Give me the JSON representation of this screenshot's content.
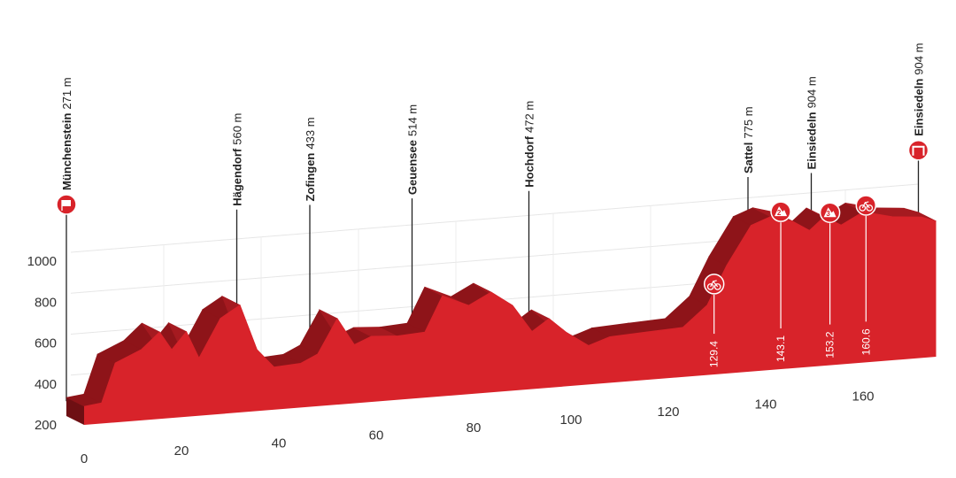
{
  "chart_data": {
    "type": "area",
    "color": "#d8232a",
    "side_color": "#8e1419",
    "x": [
      0,
      3.6,
      6.4,
      11.8,
      15.5,
      18,
      21,
      23.6,
      28,
      32,
      35.5,
      39,
      44.5,
      48,
      52,
      55.5,
      59,
      64.5,
      70,
      73.6,
      79,
      83.6,
      88,
      92,
      95.5,
      99,
      103.6,
      108,
      115.5,
      123,
      128,
      132,
      137,
      141,
      145.5,
      149,
      152,
      155.5,
      160,
      166,
      172,
      175
    ],
    "values": [
      290,
      300,
      490,
      546,
      624,
      533,
      615,
      481,
      667,
      724,
      500,
      408,
      416,
      455,
      620,
      486,
      520,
      512,
      520,
      690,
      633,
      689,
      616,
      481,
      537,
      464,
      390,
      425,
      434,
      442,
      542,
      728,
      914,
      949,
      918,
      866,
      927,
      880,
      936,
      901,
      888,
      862
    ],
    "xlim": [
      0,
      175
    ],
    "ylim": [
      200,
      1000
    ],
    "xticks": [
      0,
      20,
      40,
      60,
      80,
      100,
      120,
      140,
      160
    ],
    "yticks": [
      200,
      400,
      600,
      800,
      1000
    ],
    "grid": true,
    "places": [
      {
        "name": "Münchenstein",
        "elevation": "271 m",
        "km": 0,
        "kind": "start"
      },
      {
        "name": "Hägendorf",
        "elevation": "560 m",
        "km": 35
      },
      {
        "name": "Zofingen",
        "elevation": "433 m",
        "km": 50
      },
      {
        "name": "Geuensee",
        "elevation": "514 m",
        "km": 71
      },
      {
        "name": "Hochdorf",
        "elevation": "472 m",
        "km": 95
      },
      {
        "name": "Sattel",
        "elevation": "775 m",
        "km": 140
      },
      {
        "name": "Einsiedeln",
        "elevation": "904 m",
        "km": 153
      },
      {
        "name": "Einsiedeln",
        "elevation": "904 m",
        "km": 175,
        "kind": "finish"
      }
    ],
    "markers": [
      {
        "km": 129.4,
        "icon": "sprint"
      },
      {
        "km": 143.1,
        "icon": "climb",
        "category": "2"
      },
      {
        "km": 153.2,
        "icon": "climb",
        "category": "3"
      },
      {
        "km": 160.6,
        "icon": "sprint"
      }
    ]
  }
}
